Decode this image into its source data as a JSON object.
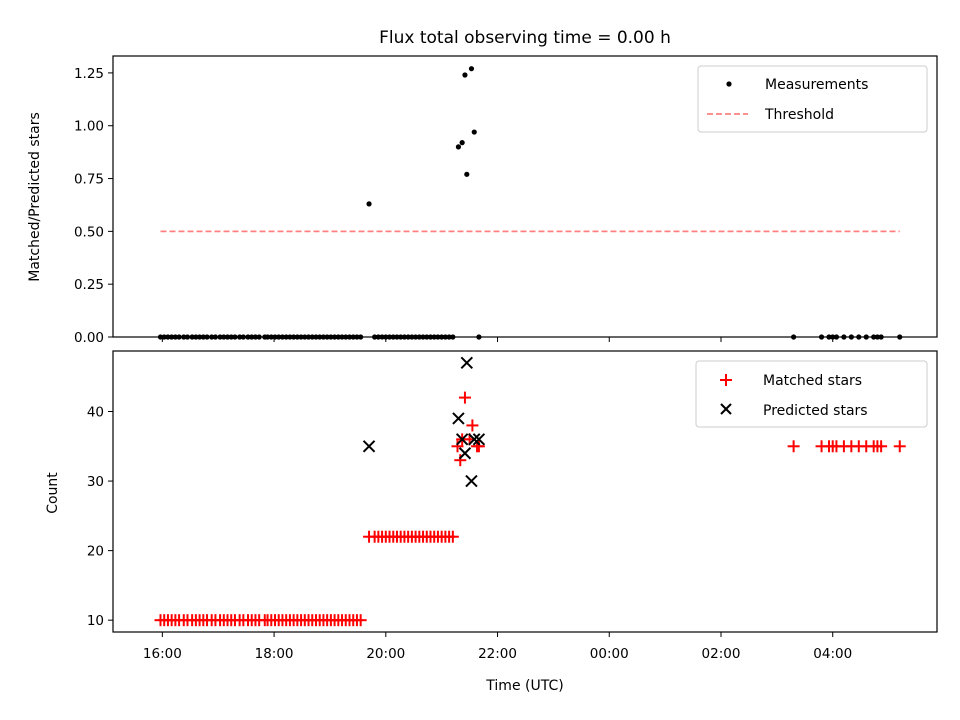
{
  "title": "Flux total observing time = 0.00 h",
  "xlabel": "Time (UTC)",
  "colors": {
    "matched": "#ff0000",
    "predicted": "#000000",
    "threshold": "#ff8080",
    "measurement": "#000000"
  },
  "chart_data": [
    {
      "type": "scatter",
      "ylabel": "Matched/Predicted stars",
      "ylim": [
        0,
        1.33
      ],
      "yticks": [
        "0.00",
        "0.25",
        "0.50",
        "0.75",
        "1.00",
        "1.25"
      ],
      "legend_position": "top-right",
      "series": [
        {
          "name": "Measurements",
          "x": [
            "15:58",
            "16:02",
            "16:06",
            "16:10",
            "16:14",
            "16:18",
            "16:23",
            "16:27",
            "16:32",
            "16:36",
            "16:40",
            "16:44",
            "16:48",
            "16:53",
            "16:57",
            "17:02",
            "17:06",
            "17:10",
            "17:14",
            "17:18",
            "17:23",
            "17:27",
            "17:32",
            "17:36",
            "17:40",
            "17:44",
            "17:50",
            "17:53",
            "17:57",
            "18:01",
            "18:05",
            "18:09",
            "18:13",
            "18:17",
            "18:21",
            "18:25",
            "18:29",
            "18:33",
            "18:37",
            "18:41",
            "18:45",
            "18:49",
            "18:53",
            "18:57",
            "19:01",
            "19:05",
            "19:09",
            "19:13",
            "19:17",
            "19:21",
            "19:25",
            "19:29",
            "19:33",
            "19:42",
            "19:48",
            "19:52",
            "19:56",
            "20:00",
            "20:04",
            "20:08",
            "20:12",
            "20:16",
            "20:20",
            "20:24",
            "20:28",
            "20:32",
            "20:36",
            "20:40",
            "20:44",
            "20:48",
            "20:52",
            "20:56",
            "21:00",
            "21:04",
            "21:08",
            "21:12",
            "21:18",
            "21:22",
            "21:25",
            "21:27",
            "21:32",
            "21:35",
            "21:40",
            "03:18",
            "03:48",
            "03:56",
            "04:00",
            "04:04",
            "04:12",
            "04:20",
            "04:28",
            "04:36",
            "04:44",
            "04:48",
            "04:52",
            "05:12"
          ],
          "y": [
            0,
            0,
            0,
            0,
            0,
            0,
            0,
            0,
            0,
            0,
            0,
            0,
            0,
            0,
            0,
            0,
            0,
            0,
            0,
            0,
            0,
            0,
            0,
            0,
            0,
            0,
            0,
            0,
            0,
            0,
            0,
            0,
            0,
            0,
            0,
            0,
            0,
            0,
            0,
            0,
            0,
            0,
            0,
            0,
            0,
            0,
            0,
            0,
            0,
            0,
            0,
            0,
            0,
            0.63,
            0,
            0,
            0,
            0,
            0,
            0,
            0,
            0,
            0,
            0,
            0,
            0,
            0,
            0,
            0,
            0,
            0,
            0,
            0,
            0,
            0,
            0,
            0.9,
            0.92,
            1.24,
            0.77,
            1.27,
            0.97,
            0,
            0,
            0,
            0,
            0,
            0,
            0,
            0,
            0,
            0,
            0,
            0,
            0,
            0
          ]
        },
        {
          "name": "Threshold",
          "style": "dashed",
          "x": [
            "15:58",
            "05:12"
          ],
          "y": [
            0.5,
            0.5
          ]
        }
      ]
    },
    {
      "type": "scatter",
      "ylabel": "Count",
      "ylim": [
        8.3,
        48.7
      ],
      "yticks": [
        "10",
        "20",
        "30",
        "40"
      ],
      "xlim": [
        "15:07",
        "05:52"
      ],
      "xticks": [
        "16:00",
        "18:00",
        "20:00",
        "22:00",
        "00:00",
        "02:00",
        "04:00"
      ],
      "legend_position": "top-right",
      "series": [
        {
          "name": "Matched stars",
          "marker": "+",
          "x": [
            "15:58",
            "16:02",
            "16:06",
            "16:10",
            "16:14",
            "16:18",
            "16:23",
            "16:27",
            "16:32",
            "16:36",
            "16:40",
            "16:44",
            "16:48",
            "16:53",
            "16:57",
            "17:02",
            "17:06",
            "17:10",
            "17:14",
            "17:18",
            "17:23",
            "17:27",
            "17:32",
            "17:36",
            "17:40",
            "17:44",
            "17:50",
            "17:53",
            "17:57",
            "18:01",
            "18:05",
            "18:09",
            "18:13",
            "18:17",
            "18:21",
            "18:25",
            "18:29",
            "18:33",
            "18:37",
            "18:41",
            "18:45",
            "18:49",
            "18:53",
            "18:57",
            "19:01",
            "19:05",
            "19:09",
            "19:13",
            "19:17",
            "19:21",
            "19:25",
            "19:29",
            "19:33",
            "19:42",
            "19:48",
            "19:52",
            "19:56",
            "20:00",
            "20:04",
            "20:08",
            "20:12",
            "20:16",
            "20:20",
            "20:24",
            "20:28",
            "20:32",
            "20:36",
            "20:40",
            "20:44",
            "20:48",
            "20:52",
            "20:56",
            "21:00",
            "21:04",
            "21:08",
            "21:12",
            "21:17",
            "21:20",
            "21:22",
            "21:25",
            "21:30",
            "21:33",
            "21:38",
            "21:40",
            "03:18",
            "03:48",
            "03:56",
            "04:00",
            "04:04",
            "04:12",
            "04:20",
            "04:28",
            "04:36",
            "04:44",
            "04:48",
            "04:52",
            "05:12"
          ],
          "y": [
            10,
            10,
            10,
            10,
            10,
            10,
            10,
            10,
            10,
            10,
            10,
            10,
            10,
            10,
            10,
            10,
            10,
            10,
            10,
            10,
            10,
            10,
            10,
            10,
            10,
            10,
            10,
            10,
            10,
            10,
            10,
            10,
            10,
            10,
            10,
            10,
            10,
            10,
            10,
            10,
            10,
            10,
            10,
            10,
            10,
            10,
            10,
            10,
            10,
            10,
            10,
            10,
            10,
            22,
            22,
            22,
            22,
            22,
            22,
            22,
            22,
            22,
            22,
            22,
            22,
            22,
            22,
            22,
            22,
            22,
            22,
            22,
            22,
            22,
            22,
            22,
            35,
            33,
            36,
            42,
            36,
            38,
            35,
            35,
            35,
            35,
            35,
            35,
            35,
            35,
            35,
            35,
            35,
            35,
            35,
            35,
            35
          ]
        },
        {
          "name": "Predicted stars",
          "marker": "x",
          "x": [
            "19:42",
            "21:18",
            "21:22",
            "21:25",
            "21:27",
            "21:32",
            "21:35",
            "21:40"
          ],
          "y": [
            35,
            39,
            36,
            34,
            47,
            30,
            36,
            36
          ]
        }
      ]
    }
  ]
}
